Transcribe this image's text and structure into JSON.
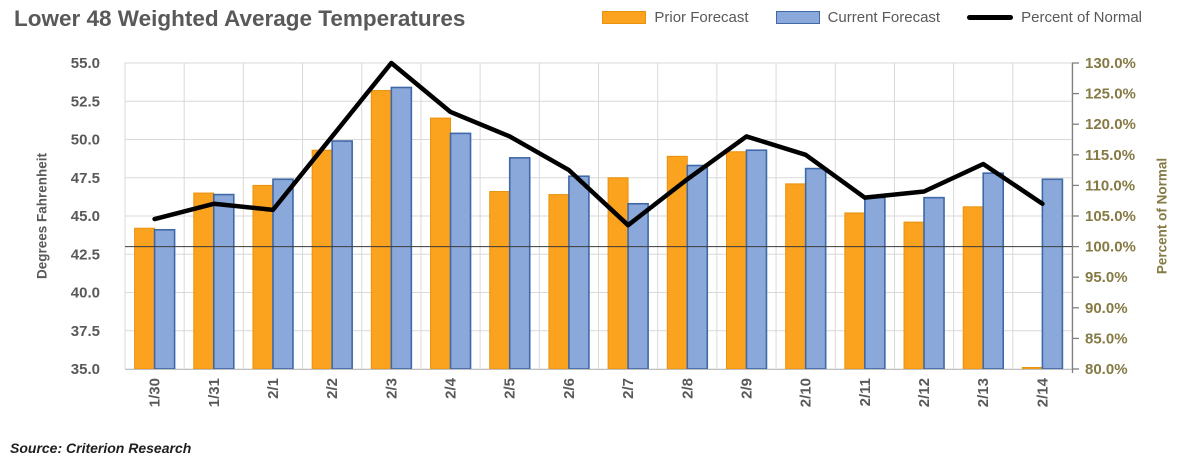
{
  "title": "Lower 48 Weighted Average Temperatures",
  "source": "Source: Criterion Research",
  "legend": {
    "prior_label": "Prior Forecast",
    "current_label": "Current Forecast",
    "percent_label": "Percent of Normal"
  },
  "colors": {
    "prior_fill": "#FBA21E",
    "prior_border": "#E8920F",
    "current_fill": "#8AA9DA",
    "current_border": "#3F68A6",
    "percent_line": "#000000",
    "gridline": "#D9D9D9",
    "axis_line": "#BFBFBF",
    "right_axis_line": "#808080",
    "left_tick_text": "#595959",
    "right_tick_text": "#857A44",
    "title_text": "#595959",
    "reference_line": "#3B3B3B"
  },
  "chart_data": {
    "type": "bar+line",
    "title": "Lower 48 Weighted Average Temperatures",
    "categories": [
      "1/30",
      "1/31",
      "2/1",
      "2/2",
      "2/3",
      "2/4",
      "2/5",
      "2/6",
      "2/7",
      "2/8",
      "2/9",
      "2/10",
      "2/11",
      "2/12",
      "2/13",
      "2/14"
    ],
    "series": [
      {
        "name": "Prior Forecast",
        "type": "bar",
        "axis": "left",
        "color": "#FBA21E",
        "values": [
          44.2,
          46.5,
          47.0,
          49.3,
          53.2,
          51.4,
          46.6,
          46.4,
          47.5,
          48.9,
          49.2,
          47.1,
          45.2,
          44.6,
          45.6,
          35.0
        ]
      },
      {
        "name": "Current Forecast",
        "type": "bar",
        "axis": "left",
        "color": "#8AA9DA",
        "values": [
          44.1,
          46.4,
          47.4,
          49.9,
          53.4,
          50.4,
          48.8,
          47.6,
          45.8,
          48.3,
          49.3,
          48.1,
          46.2,
          46.2,
          47.8,
          47.4
        ]
      },
      {
        "name": "Percent of Normal",
        "type": "line",
        "axis": "right",
        "color": "#000000",
        "values": [
          104.5,
          107.0,
          106.0,
          118.0,
          130.0,
          122.0,
          118.0,
          112.5,
          103.5,
          111.0,
          118.0,
          115.0,
          108.0,
          109.0,
          113.5,
          107.0
        ]
      }
    ],
    "xlabel": "",
    "ylabel_left": "Degrees Fahrenheit",
    "ylabel_right": "Percent of Normal",
    "y_left": {
      "min": 35.0,
      "max": 55.0,
      "step": 2.5,
      "tick_format": "0.0"
    },
    "y_right": {
      "min": 80.0,
      "max": 130.0,
      "step": 5.0,
      "tick_format": "0.0%"
    },
    "reference_line_right": 100.0,
    "grid": "horizontal and vertical, light gray",
    "legend_position": "top-right"
  }
}
